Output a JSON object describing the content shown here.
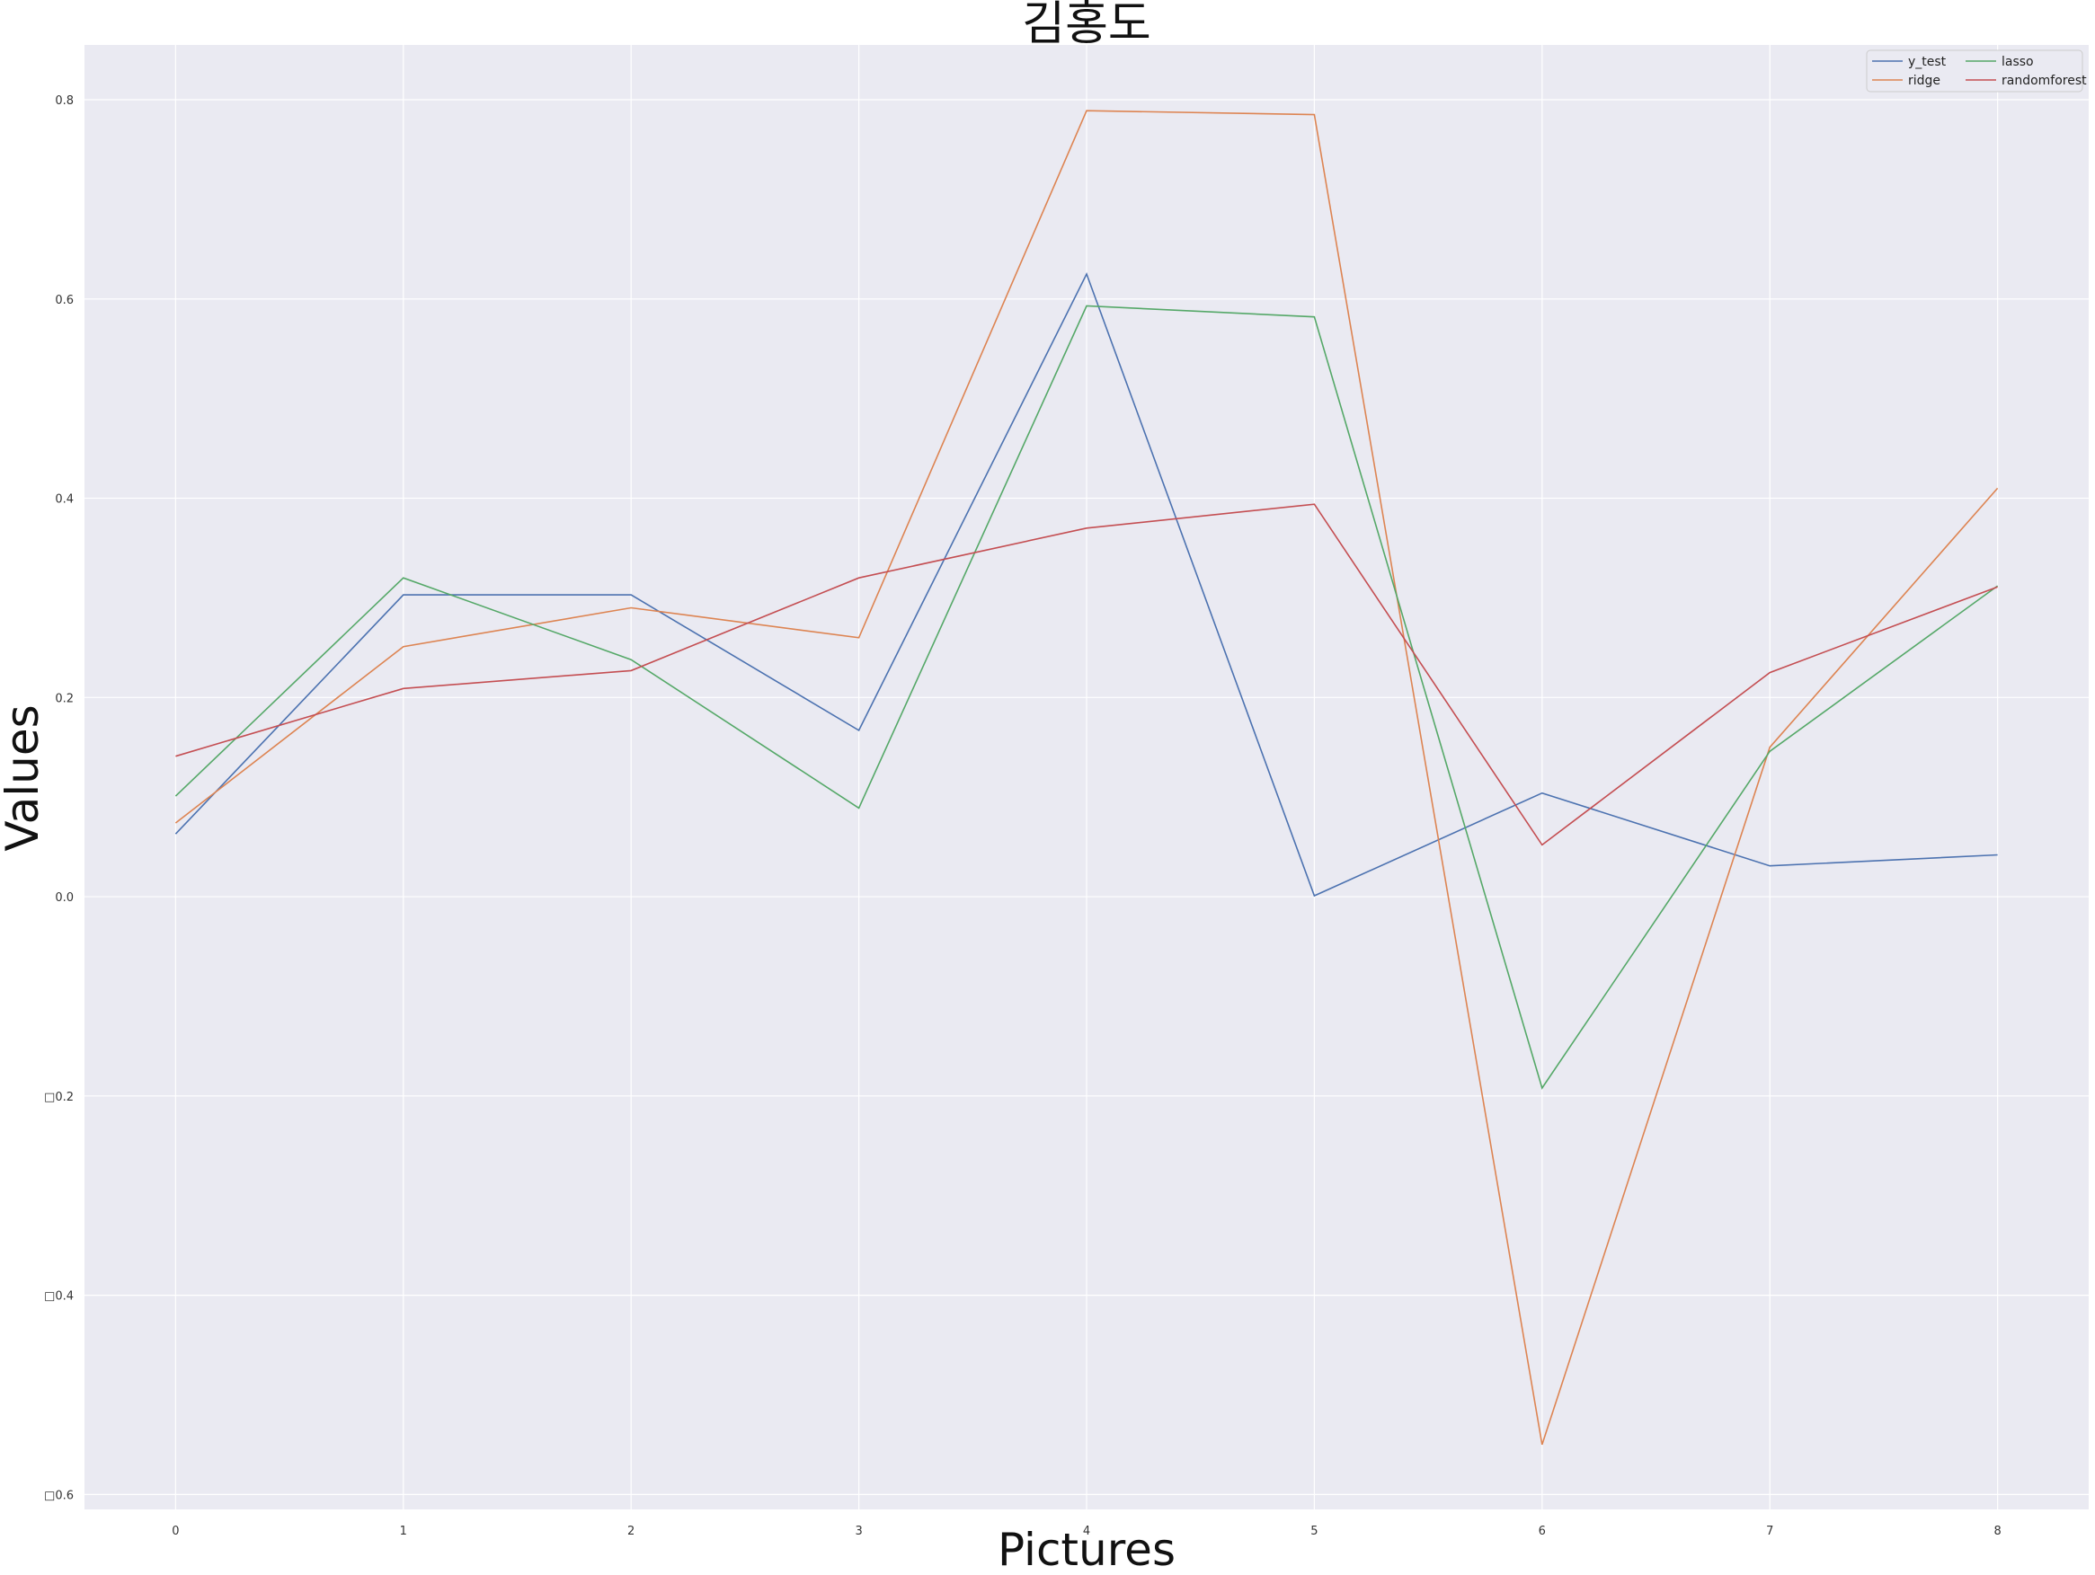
{
  "chart_data": {
    "type": "line",
    "title": "김홍도",
    "xlabel": "Pictures",
    "ylabel": "Values",
    "x": [
      0,
      1,
      2,
      3,
      4,
      5,
      6,
      7,
      8
    ],
    "xlim": [
      -0.4,
      8.4
    ],
    "ylim": [
      -0.615,
      0.855
    ],
    "yticks": [
      -0.6,
      -0.4,
      -0.2,
      0.0,
      0.2,
      0.4,
      0.6,
      0.8
    ],
    "ytick_labels": [
      "□0.6",
      "□0.4",
      "□0.2",
      "0.0",
      "0.2",
      "0.4",
      "0.6",
      "0.8"
    ],
    "xtick_labels": [
      "0",
      "1",
      "2",
      "3",
      "4",
      "5",
      "6",
      "7",
      "8"
    ],
    "grid": true,
    "legend_position": "top-right",
    "legend_columns": 2,
    "background_color": "#eaeaf2",
    "series": [
      {
        "name": "y_test",
        "color": "#4c72b0",
        "values": [
          0.063,
          0.303,
          0.303,
          0.167,
          0.625,
          0.001,
          0.104,
          0.031,
          0.042
        ]
      },
      {
        "name": "ridge",
        "color": "#dd8452",
        "values": [
          0.074,
          0.251,
          0.29,
          0.26,
          0.789,
          0.785,
          -0.55,
          0.15,
          0.41
        ]
      },
      {
        "name": "lasso",
        "color": "#55a868",
        "values": [
          0.101,
          0.32,
          0.238,
          0.089,
          0.593,
          0.582,
          -0.192,
          0.146,
          0.312
        ]
      },
      {
        "name": "randomforest",
        "color": "#c44e52",
        "values": [
          0.141,
          0.209,
          0.227,
          0.32,
          0.37,
          0.394,
          0.052,
          0.225,
          0.311
        ]
      }
    ]
  }
}
